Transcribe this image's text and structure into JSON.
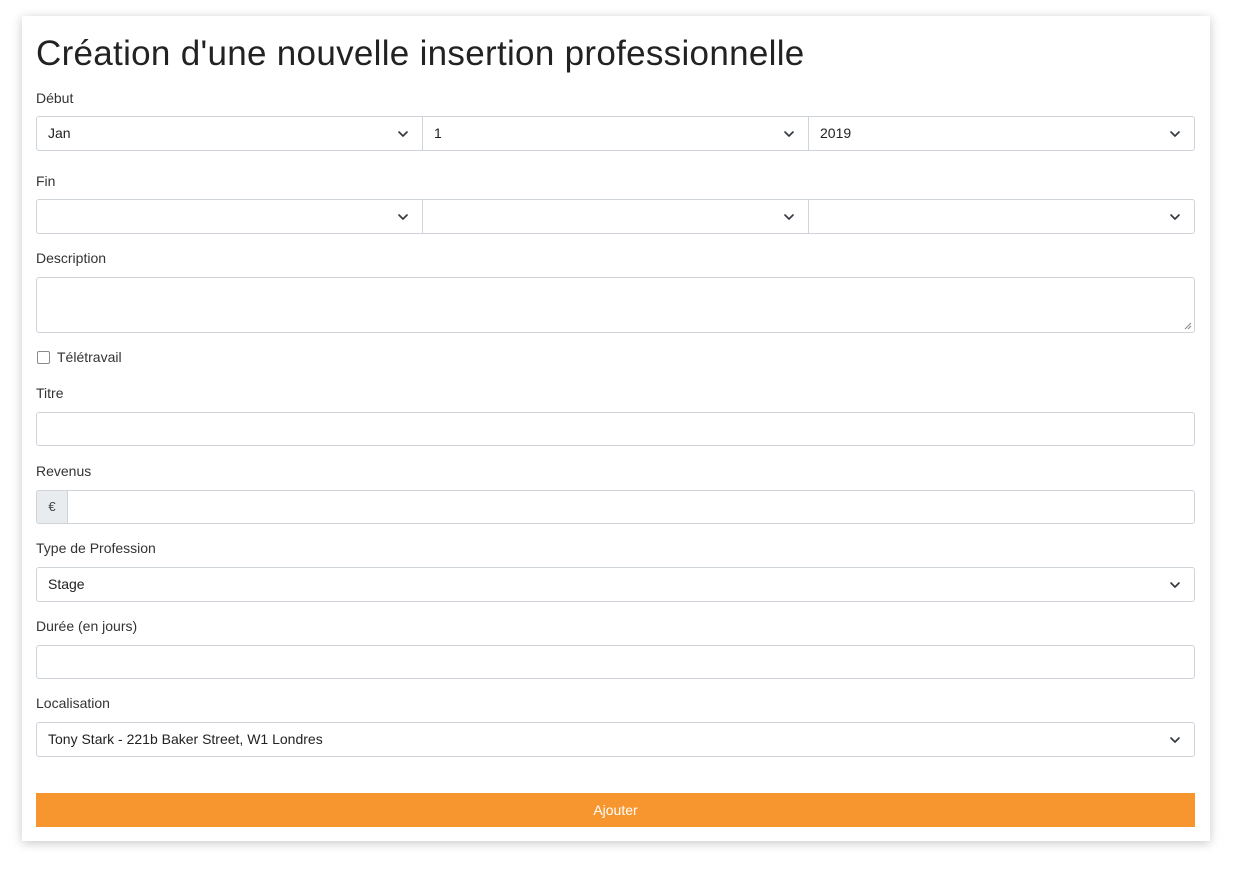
{
  "form": {
    "title": "Création d'une nouvelle insertion professionnelle",
    "start": {
      "label": "Début",
      "month": "Jan",
      "day": "1",
      "year": "2019"
    },
    "end": {
      "label": "Fin",
      "month": "",
      "day": "",
      "year": ""
    },
    "description": {
      "label": "Description",
      "value": ""
    },
    "remote": {
      "label": "Télétravail",
      "checked": false
    },
    "job_title": {
      "label": "Titre",
      "value": ""
    },
    "income": {
      "label": "Revenus",
      "currency_symbol": "€",
      "value": ""
    },
    "profession_type": {
      "label": "Type de Profession",
      "selected": "Stage"
    },
    "duration": {
      "label": "Durée (en jours)",
      "value": ""
    },
    "location": {
      "label": "Localisation",
      "selected": "Tony Stark - 221b Baker Street, W1 Londres"
    },
    "submit_label": "Ajouter"
  },
  "colors": {
    "accent": "#f7962f",
    "border": "#ced4da",
    "addon_bg": "#e9ecef"
  },
  "icons": {
    "select_caret": "chevron-down-icon",
    "textarea_resize": "resize-handle-icon"
  }
}
